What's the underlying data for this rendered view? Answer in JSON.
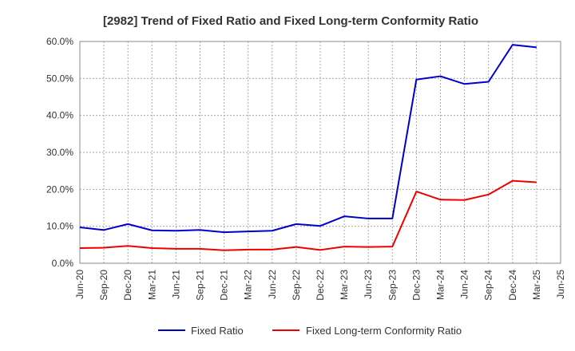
{
  "chart_data": {
    "type": "line",
    "title": "[2982]  Trend of Fixed Ratio and Fixed Long-term Conformity Ratio",
    "xlabel": "",
    "ylabel": "",
    "ylim": [
      0,
      60
    ],
    "y_ticks": [
      "0.0%",
      "10.0%",
      "20.0%",
      "30.0%",
      "40.0%",
      "50.0%",
      "60.0%"
    ],
    "x_ticks": [
      "Jun-20",
      "Sep-20",
      "Dec-20",
      "Mar-21",
      "Jun-21",
      "Sep-21",
      "Dec-21",
      "Mar-22",
      "Jun-22",
      "Sep-22",
      "Dec-22",
      "Mar-23",
      "Jun-23",
      "Sep-23",
      "Dec-23",
      "Mar-24",
      "Jun-24",
      "Sep-24",
      "Dec-24",
      "Mar-25",
      "Jun-25"
    ],
    "x": [
      "Jun-20",
      "Sep-20",
      "Dec-20",
      "Mar-21",
      "Jun-21",
      "Sep-21",
      "Dec-21",
      "Mar-22",
      "Jun-22",
      "Sep-22",
      "Dec-22",
      "Mar-23",
      "Jun-23",
      "Sep-23",
      "Dec-23",
      "Mar-24",
      "Jun-24",
      "Sep-24",
      "Dec-24",
      "Mar-25"
    ],
    "grid": true,
    "legend_position": "bottom",
    "series": [
      {
        "name": "Fixed Ratio",
        "color": "#0000cc",
        "values": [
          9.7,
          9.0,
          10.6,
          8.9,
          8.8,
          9.0,
          8.4,
          8.6,
          8.8,
          10.6,
          10.1,
          12.7,
          12.1,
          12.1,
          49.7,
          50.6,
          48.5,
          49.1,
          59.1,
          58.4
        ]
      },
      {
        "name": "Fixed Long-term Conformity Ratio",
        "color": "#ee0000",
        "values": [
          4.1,
          4.2,
          4.7,
          4.1,
          3.9,
          3.9,
          3.5,
          3.7,
          3.7,
          4.4,
          3.6,
          4.5,
          4.4,
          4.5,
          19.4,
          17.2,
          17.1,
          18.6,
          22.3,
          21.9
        ]
      }
    ]
  }
}
